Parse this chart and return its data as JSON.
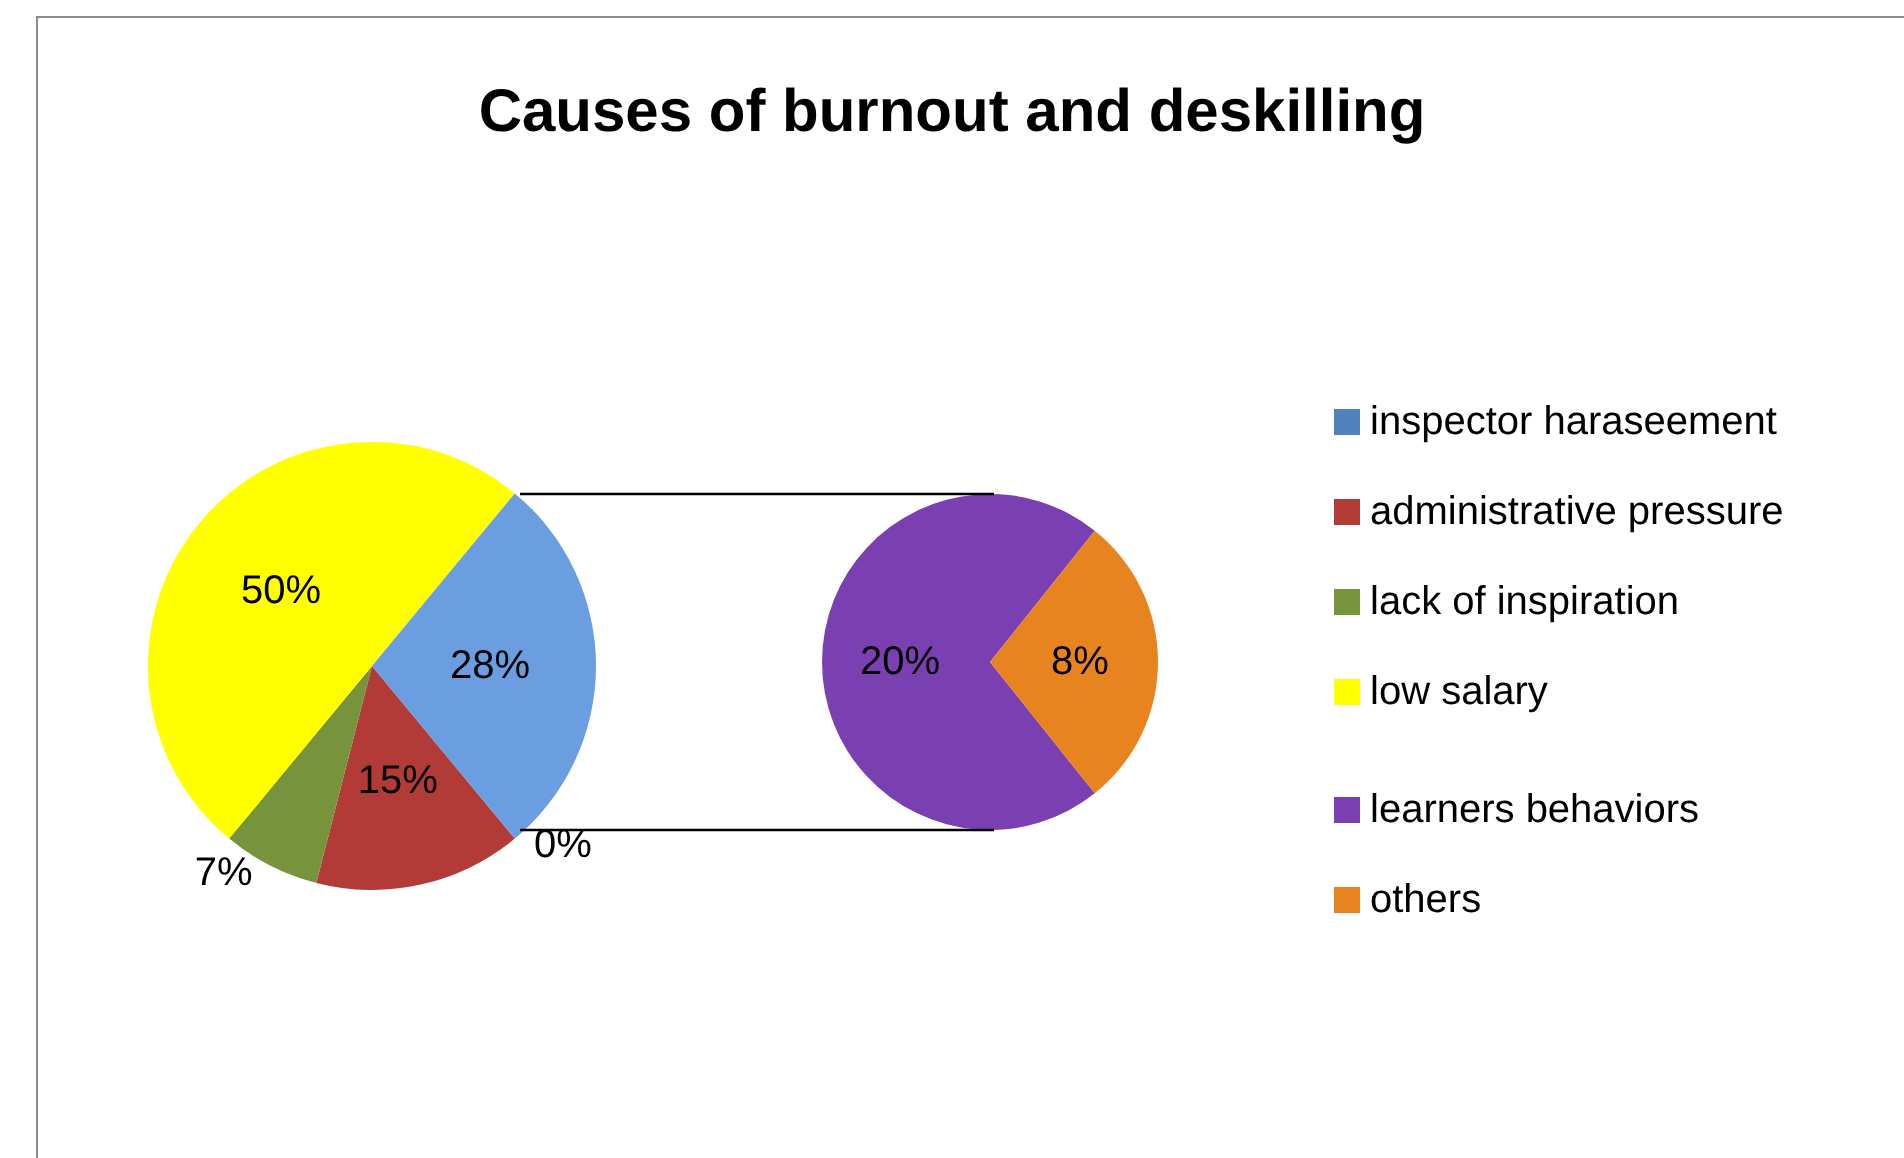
{
  "chart_data": [
    {
      "type": "pie",
      "title": "Causes of burnout and deskilling",
      "categories": [
        "inspector haraseement",
        "administrative pressure",
        "lack of inspiration",
        "low salary",
        null
      ],
      "values": [
        0,
        15,
        7,
        50,
        28
      ],
      "colors": [
        "#4f81bd",
        "#b23b38",
        "#77933c",
        "#ffff00",
        "#6a9ee0"
      ],
      "value_labels": [
        "0%",
        "15%",
        "7%",
        "50%",
        "28%"
      ],
      "legend": "right"
    },
    {
      "type": "pie",
      "categories": [
        "learners behaviors",
        "others"
      ],
      "values": [
        20,
        8
      ],
      "colors": [
        "#7a3fb0",
        "#e8841f"
      ],
      "value_labels": [
        "20%",
        "8%"
      ],
      "legend": "right"
    }
  ]
}
